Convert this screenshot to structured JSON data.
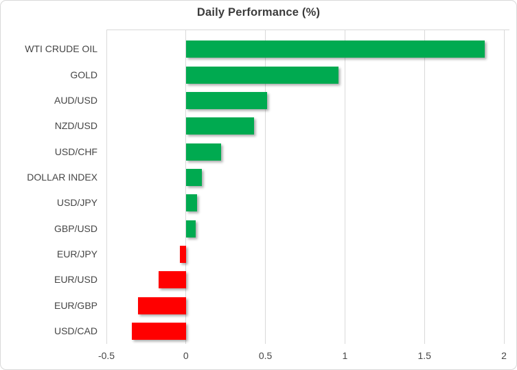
{
  "chart": {
    "title": "Daily Performance (%)",
    "colors": {
      "positive_bar": "#00aa50",
      "negative_bar": "#ff0000",
      "gridline": "#d9d9d9",
      "axis_text": "#454545",
      "title_text": "#3b3b3b",
      "chart_border": "#d8d8d8"
    }
  },
  "chart_data": {
    "type": "bar",
    "orientation": "horizontal",
    "title": "Daily Performance (%)",
    "categories": [
      "WTI CRUDE OIL",
      "GOLD",
      "AUD/USD",
      "NZD/USD",
      "USD/CHF",
      "DOLLAR INDEX",
      "USD/JPY",
      "GBP/USD",
      "EUR/JPY",
      "EUR/USD",
      "EUR/GBP",
      "USD/CAD"
    ],
    "values": [
      1.88,
      0.96,
      0.51,
      0.43,
      0.22,
      0.1,
      0.07,
      0.06,
      -0.04,
      -0.17,
      -0.3,
      -0.34
    ],
    "xlabel": "",
    "ylabel": "",
    "xlim": [
      -0.5,
      2.0
    ],
    "x_ticks": [
      -0.5,
      0,
      0.5,
      1,
      1.5,
      2
    ],
    "x_tick_labels": [
      "-0.5",
      "0",
      "0.5",
      "1",
      "1.5",
      "2"
    ],
    "grid": true,
    "legend": false
  }
}
